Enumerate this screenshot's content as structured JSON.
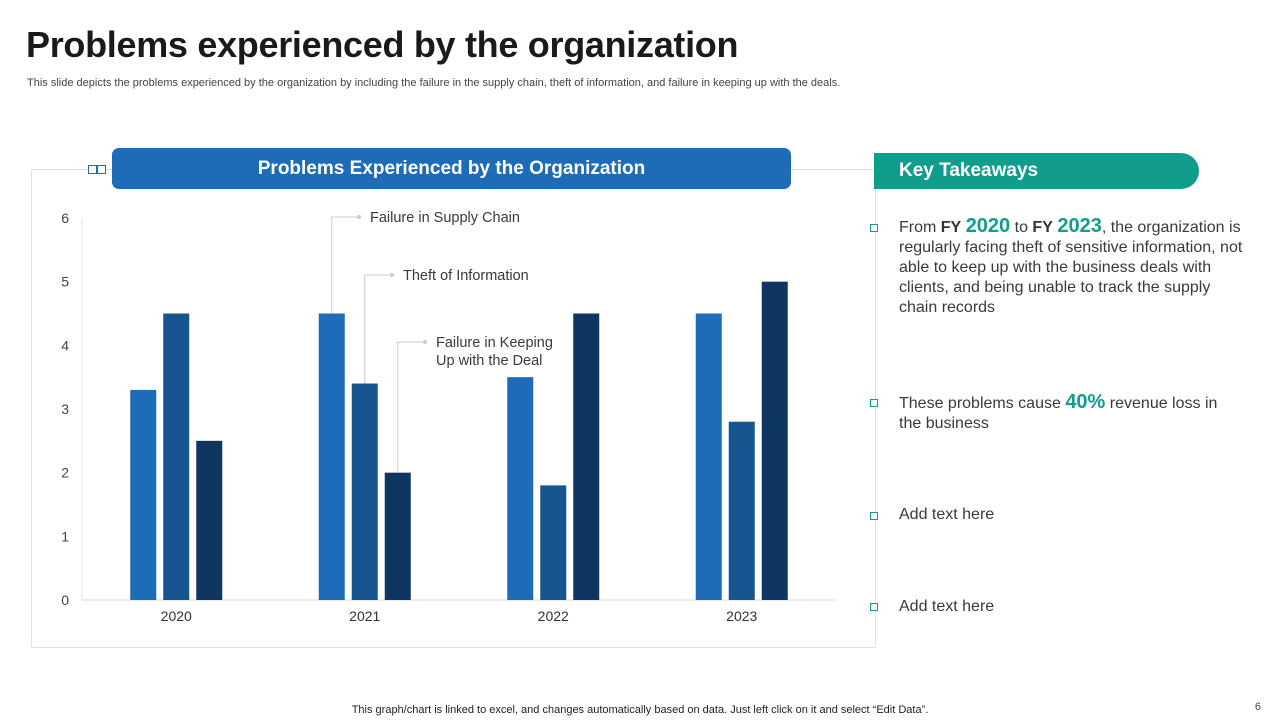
{
  "slide": {
    "title": "Problems experienced by the organization",
    "subtitle": "This slide depicts the problems experienced by the organization by including the failure in the supply chain, theft of information, and failure in keeping up with the deals.",
    "footer": "This graph/chart is linked to excel,  and changes automatically based on data. Just left click on it and select “Edit Data”.",
    "page_number": "6"
  },
  "chart_header": "Problems Experienced by the Organization",
  "key_takeaways": {
    "header": "Key Takeaways",
    "item1": {
      "p1": "From ",
      "fy1": "FY",
      "y1": "2020",
      "p2": " to ",
      "fy2": "FY",
      "y2": "2023",
      "p3": ", the organization is regularly facing theft of sensitive information, not able to keep up with the business deals with clients, and being unable to track the supply chain records"
    },
    "item2": {
      "p1": "These problems cause ",
      "pct": "40%",
      "p2": " revenue loss in the business"
    },
    "item3": "Add text here",
    "item4": "Add text here"
  },
  "colors": {
    "series1": "#1e6bb8",
    "series2": "#175591",
    "series3": "#0e3660",
    "accent": "#119d8c"
  },
  "chart_data": {
    "type": "bar",
    "title": "Problems Experienced by the Organization",
    "categories": [
      "2020",
      "2021",
      "2022",
      "2023"
    ],
    "series": [
      {
        "name": "Failure in Supply Chain",
        "label": "Failure in Supply Chain",
        "values": [
          3.3,
          4.5,
          3.5,
          4.5
        ]
      },
      {
        "name": "Theft of Information",
        "label": "Theft of Information",
        "values": [
          4.5,
          3.4,
          1.8,
          2.8
        ]
      },
      {
        "name": "Failure in Keeping Up with the Deal",
        "label": "Failure in Keeping\nUp with the Deal",
        "values": [
          2.5,
          2.0,
          4.5,
          5.0
        ]
      }
    ],
    "ylim": [
      0,
      6
    ],
    "yticks": [
      0,
      1,
      2,
      3,
      4,
      5,
      6
    ],
    "xlabel": "",
    "ylabel": "",
    "grid": false,
    "legend": "callout-labels"
  }
}
